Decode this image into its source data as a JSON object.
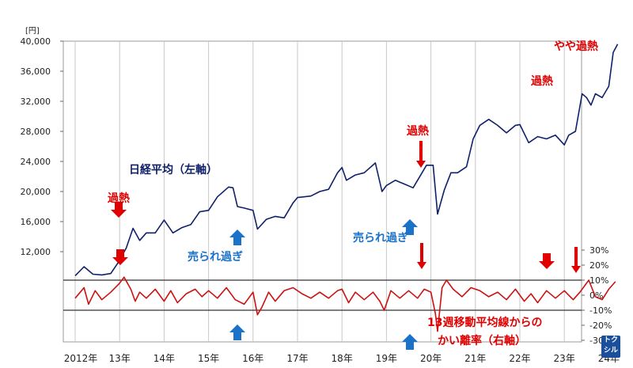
{
  "chart_data": {
    "type": "line",
    "left_unit": "[円]",
    "left_ticks": [
      "40,000",
      "36,000",
      "32,000",
      "28,000",
      "24,000",
      "20,000",
      "16,000",
      "12,000"
    ],
    "left_tick_values": [
      40000,
      36000,
      32000,
      28000,
      24000,
      20000,
      16000,
      12000
    ],
    "right_ticks": [
      "30%",
      "20%",
      "10%",
      "0%",
      "-10%",
      "-20%",
      "-30%"
    ],
    "right_tick_values": [
      30,
      20,
      10,
      0,
      -10,
      -20,
      -30
    ],
    "x_ticks": [
      "2012年",
      "13年",
      "14年",
      "15年",
      "16年",
      "17年",
      "18年",
      "19年",
      "20年",
      "21年",
      "22年",
      "23年",
      "24年"
    ],
    "x_tick_years": [
      2012,
      2013,
      2014,
      2015,
      2016,
      2017,
      2018,
      2019,
      2020,
      2021,
      2022,
      2023,
      2024
    ],
    "reference_lines_percent": [
      10,
      -10
    ],
    "series": [
      {
        "name": "日経平均（左軸）",
        "axis": "left",
        "color": "#10206a",
        "x": [
          2012.0,
          2012.2,
          2012.4,
          2012.6,
          2012.8,
          2012.95,
          2013.15,
          2013.3,
          2013.45,
          2013.6,
          2013.8,
          2014.0,
          2014.2,
          2014.4,
          2014.6,
          2014.8,
          2015.0,
          2015.2,
          2015.45,
          2015.55,
          2015.65,
          2015.8,
          2016.0,
          2016.1,
          2016.3,
          2016.5,
          2016.7,
          2016.9,
          2017.0,
          2017.3,
          2017.5,
          2017.7,
          2017.9,
          2018.0,
          2018.1,
          2018.3,
          2018.5,
          2018.75,
          2018.9,
          2019.0,
          2019.2,
          2019.4,
          2019.6,
          2019.9,
          2020.05,
          2020.15,
          2020.3,
          2020.45,
          2020.6,
          2020.8,
          2020.95,
          2021.1,
          2021.3,
          2021.5,
          2021.7,
          2021.9,
          2022.0,
          2022.2,
          2022.4,
          2022.6,
          2022.8,
          2023.0,
          2023.1,
          2023.25,
          2023.4,
          2023.5,
          2023.6,
          2023.7,
          2023.85,
          2024.0,
          2024.1,
          2024.2
        ],
        "values": [
          8800,
          10000,
          9000,
          8900,
          9100,
          10400,
          12500,
          15100,
          13500,
          14500,
          14500,
          16200,
          14500,
          15200,
          15600,
          17300,
          17500,
          19300,
          20600,
          20500,
          18000,
          17800,
          17500,
          15000,
          16300,
          16700,
          16500,
          18500,
          19200,
          19400,
          20000,
          20300,
          22500,
          23200,
          21500,
          22200,
          22500,
          23800,
          20000,
          20800,
          21500,
          21000,
          20500,
          23500,
          23500,
          17000,
          20200,
          22500,
          22500,
          23300,
          27000,
          28800,
          29600,
          28800,
          27800,
          28800,
          28900,
          26500,
          27300,
          27000,
          27500,
          26200,
          27500,
          28000,
          33000,
          32500,
          31500,
          33000,
          32500,
          34000,
          38500,
          39600
        ]
      },
      {
        "name": "13週移動平均線からのかい離率（右軸）",
        "axis": "right",
        "color": "#cc1111",
        "x": [
          2012.0,
          2012.2,
          2012.3,
          2012.45,
          2012.6,
          2012.8,
          2013.0,
          2013.1,
          2013.25,
          2013.35,
          2013.45,
          2013.6,
          2013.8,
          2014.0,
          2014.15,
          2014.3,
          2014.5,
          2014.7,
          2014.85,
          2015.0,
          2015.2,
          2015.4,
          2015.6,
          2015.8,
          2016.0,
          2016.1,
          2016.2,
          2016.35,
          2016.5,
          2016.7,
          2016.9,
          2017.1,
          2017.3,
          2017.5,
          2017.7,
          2017.9,
          2018.0,
          2018.15,
          2018.3,
          2018.5,
          2018.7,
          2018.85,
          2018.95,
          2019.1,
          2019.3,
          2019.5,
          2019.7,
          2019.85,
          2020.0,
          2020.1,
          2020.15,
          2020.25,
          2020.35,
          2020.5,
          2020.7,
          2020.9,
          2021.1,
          2021.3,
          2021.5,
          2021.7,
          2021.9,
          2022.1,
          2022.25,
          2022.4,
          2022.6,
          2022.8,
          2023.0,
          2023.2,
          2023.35,
          2023.45,
          2023.55,
          2023.7,
          2023.85,
          2024.0,
          2024.15
        ],
        "values": [
          -2,
          5,
          -6,
          3,
          -3,
          2,
          8,
          12,
          4,
          -4,
          2,
          -2,
          4,
          -4,
          3,
          -5,
          1,
          4,
          -1,
          3,
          -2,
          5,
          -3,
          -6,
          2,
          -13,
          -8,
          2,
          -4,
          3,
          5,
          1,
          -2,
          2,
          -2,
          3,
          4,
          -5,
          2,
          -3,
          2,
          -4,
          -10,
          3,
          -2,
          3,
          -2,
          4,
          2,
          -12,
          -24,
          5,
          10,
          4,
          -1,
          5,
          3,
          -1,
          2,
          -3,
          4,
          -4,
          1,
          -5,
          3,
          -2,
          3,
          -3,
          2,
          6,
          10,
          -1,
          -3,
          4,
          9
        ]
      }
    ],
    "annotations": [
      {
        "text": "過熱",
        "x": 2012.95,
        "style": "red",
        "arrow": "down"
      },
      {
        "text": "過熱",
        "x": 2019.6,
        "style": "red",
        "arrow": "down"
      },
      {
        "text": "過熱",
        "x": 2023.3,
        "style": "red",
        "arrow": "down"
      },
      {
        "text": "やや過熱",
        "x": 2024.1,
        "style": "red",
        "arrow": "none"
      },
      {
        "text": "売られ過ぎ",
        "x": 2015.75,
        "style": "blue",
        "arrow": "up"
      },
      {
        "text": "売られ過ぎ",
        "x": 2019.8,
        "style": "blue",
        "arrow": "up"
      },
      {
        "text": "日経平均（左軸）",
        "style": "navy"
      },
      {
        "text": "13週移動平均線からの",
        "style": "red"
      },
      {
        "text": "かい離率（右軸）",
        "style": "red"
      }
    ],
    "logo_text": [
      "トク",
      "シル"
    ]
  }
}
